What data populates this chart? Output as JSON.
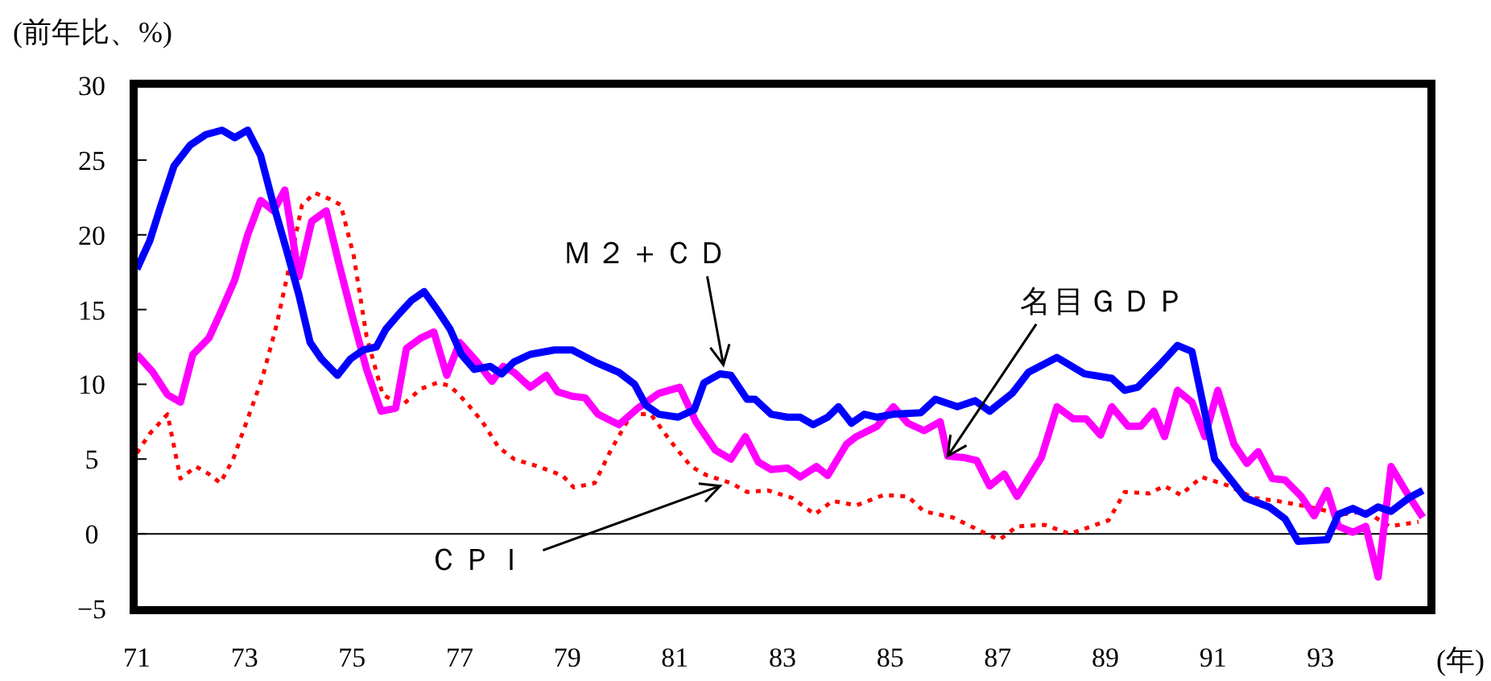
{
  "chart_data": {
    "type": "line",
    "xlabel": "(年)",
    "ylabel": "(前年比、%)",
    "xlim": [
      71,
      95
    ],
    "xticks": [
      71,
      73,
      75,
      77,
      79,
      81,
      83,
      85,
      87,
      89,
      91,
      93
    ],
    "ylim": [
      -5,
      30
    ],
    "yticks": [
      {
        "value": -5,
        "label": "−5"
      },
      0,
      5,
      10,
      15,
      20,
      25,
      30
    ],
    "grid": false,
    "marker": "none",
    "ref_lines": [
      {
        "axis": "y",
        "value": 0,
        "color": "#000000"
      }
    ],
    "annotations": [
      {
        "text": "Ｍ２＋ＣＤ",
        "x": 81.9,
        "y": 11.3
      },
      {
        "text": "名目ＧＤＰ",
        "x": 86.07,
        "y": 5.2
      },
      {
        "text": "ＣＰＩ",
        "x": 81.84,
        "y": 3.2
      }
    ],
    "series": [
      {
        "color": "#0000ff",
        "line_style": "solid",
        "x": [
          71,
          71.24,
          71.45,
          71.69,
          71.99,
          72.28,
          72.58,
          72.82,
          73.06,
          73.3,
          73.54,
          73.78,
          74.01,
          74.22,
          74.43,
          74.73,
          74.97,
          75.21,
          75.45,
          75.63,
          75.87,
          76.1,
          76.34,
          76.58,
          76.82,
          77.03,
          77.27,
          77.57,
          77.78,
          78.01,
          78.31,
          78.76,
          79.09,
          79.51,
          79.96,
          80.25,
          80.46,
          80.7,
          81.06,
          81.36,
          81.54,
          81.84,
          82.04,
          82.34,
          82.49,
          82.79,
          83.09,
          83.33,
          83.57,
          83.84,
          84.04,
          84.28,
          84.52,
          84.76,
          85.06,
          85.57,
          85.84,
          86.25,
          86.58,
          86.85,
          87.27,
          87.57,
          88.1,
          88.61,
          89.12,
          89.36,
          89.6,
          90.01,
          90.34,
          90.61,
          91.03,
          91.6,
          92.04,
          92.34,
          92.58,
          93.12,
          93.33,
          93.6,
          93.84,
          94.07,
          94.31,
          94.64,
          94.9
        ],
        "values": [
          17.7,
          19.6,
          22,
          24.6,
          26,
          26.7,
          27,
          26.5,
          27,
          25.3,
          22,
          19,
          16,
          12.8,
          11.7,
          10.6,
          11.7,
          12.3,
          12.5,
          13.7,
          14.7,
          15.6,
          16.2,
          15,
          13.7,
          12,
          11,
          11.2,
          10.7,
          11.5,
          12,
          12.3,
          12.3,
          11.5,
          10.8,
          10,
          8.6,
          8,
          7.8,
          8.3,
          10.1,
          10.7,
          10.6,
          9,
          9,
          8,
          7.8,
          7.8,
          7.3,
          7.8,
          8.5,
          7.4,
          8,
          7.8,
          8,
          8.1,
          9,
          8.5,
          8.9,
          8.2,
          9.4,
          10.8,
          11.8,
          10.7,
          10.4,
          9.6,
          9.8,
          11.3,
          12.6,
          12.2,
          5,
          2.4,
          1.8,
          1,
          -0.5,
          -0.4,
          1.3,
          1.7,
          1.3,
          1.8,
          1.5,
          2.4,
          2.9
        ]
      },
      {
        "color": "#ff00ff",
        "line_style": "solid",
        "x": [
          71,
          71.3,
          71.57,
          71.81,
          72.04,
          72.34,
          72.58,
          72.82,
          73.06,
          73.3,
          73.54,
          73.75,
          74.01,
          74.25,
          74.52,
          74.76,
          75.03,
          75.27,
          75.54,
          75.81,
          76.01,
          76.28,
          76.52,
          76.76,
          77,
          77.3,
          77.6,
          77.81,
          78.01,
          78.31,
          78.61,
          78.82,
          79.09,
          79.33,
          79.57,
          79.96,
          80.31,
          80.7,
          81.09,
          81.39,
          81.75,
          82.04,
          82.31,
          82.55,
          82.79,
          83.09,
          83.33,
          83.63,
          83.84,
          84.19,
          84.37,
          84.76,
          85.06,
          85.33,
          85.63,
          85.93,
          86.07,
          86.37,
          86.61,
          86.85,
          87.12,
          87.36,
          87.81,
          88.1,
          88.4,
          88.64,
          88.91,
          89.12,
          89.42,
          89.66,
          89.9,
          90.1,
          90.34,
          90.61,
          90.85,
          91.09,
          91.39,
          91.63,
          91.84,
          92.1,
          92.34,
          92.64,
          92.88,
          93.12,
          93.33,
          93.6,
          93.84,
          94.07,
          94.31,
          94.61,
          94.9
        ],
        "values": [
          12,
          10.8,
          9.3,
          8.8,
          12,
          13.1,
          15,
          17,
          20,
          22.3,
          21.6,
          23,
          17.2,
          20.9,
          21.6,
          18,
          14.2,
          11,
          8.2,
          8.4,
          12.4,
          13.1,
          13.5,
          10.6,
          12.8,
          11.6,
          10.2,
          11.2,
          10.8,
          9.8,
          10.6,
          9.5,
          9.2,
          9.1,
          8,
          7.3,
          8.4,
          9.4,
          9.8,
          7.5,
          5.6,
          5,
          6.5,
          4.8,
          4.3,
          4.4,
          3.8,
          4.5,
          3.9,
          6,
          6.5,
          7.2,
          8.5,
          7.4,
          6.9,
          7.5,
          5.2,
          5.1,
          4.9,
          3.2,
          4,
          2.5,
          5.1,
          8.5,
          7.7,
          7.7,
          6.6,
          8.5,
          7.2,
          7.2,
          8.2,
          6.5,
          9.6,
          8.8,
          6.5,
          9.6,
          6,
          4.7,
          5.5,
          3.7,
          3.6,
          2.5,
          1.2,
          2.9,
          0.5,
          0.1,
          0.5,
          -2.9,
          4.5,
          2.7,
          1.1
        ]
      },
      {
        "color": "#ff0000",
        "line_style": "dotted",
        "x": [
          71,
          71.24,
          71.57,
          71.81,
          72.1,
          72.34,
          72.55,
          72.79,
          73.03,
          73.33,
          73.6,
          73.84,
          74.07,
          74.31,
          74.58,
          74.79,
          75.03,
          75.27,
          75.57,
          75.93,
          76.28,
          76.58,
          76.82,
          77.12,
          77.42,
          77.72,
          78.01,
          78.46,
          78.91,
          79.12,
          79.51,
          79.81,
          80.19,
          80.55,
          80.94,
          81.3,
          81.6,
          82.04,
          82.34,
          82.73,
          83.18,
          83.6,
          83.93,
          84.37,
          84.88,
          85.33,
          85.63,
          86.16,
          86.67,
          87.03,
          87.36,
          87.87,
          88.34,
          89.06,
          89.36,
          89.81,
          90.1,
          90.4,
          90.79,
          91.3,
          91.75,
          92.19,
          92.79,
          93.39,
          93.84,
          94.28,
          94.82
        ],
        "values": [
          5.4,
          6.7,
          8,
          3.7,
          4.5,
          4,
          3.4,
          5,
          7.4,
          10.4,
          14,
          18,
          22,
          22.8,
          22.4,
          22,
          18.6,
          13.2,
          9.3,
          8.6,
          9.7,
          10.1,
          9.9,
          8.8,
          7.5,
          5.8,
          5,
          4.5,
          3.9,
          3.1,
          3.4,
          5.6,
          8,
          8,
          6.1,
          4.5,
          3.9,
          3.4,
          2.8,
          2.9,
          2.4,
          1.3,
          2.2,
          1.9,
          2.6,
          2.5,
          1.5,
          1.1,
          0.2,
          -0.4,
          0.5,
          0.6,
          0,
          0.9,
          2.8,
          2.7,
          3.2,
          2.6,
          3.8,
          3.2,
          2.4,
          2.2,
          1.8,
          1.3,
          1.5,
          0.5,
          0.8
        ]
      }
    ]
  }
}
